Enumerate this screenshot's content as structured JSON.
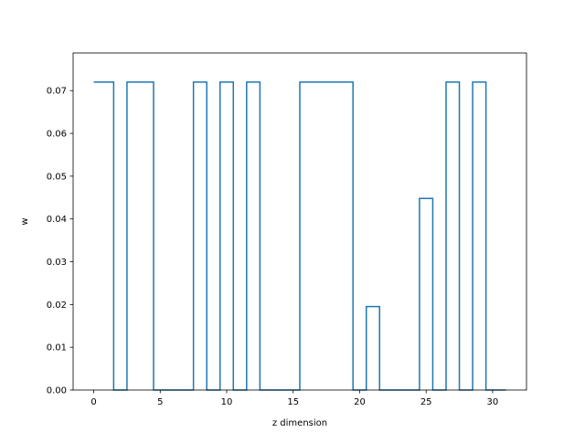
{
  "chart_data": {
    "type": "line",
    "drawstyle": "steps-mid",
    "title": "",
    "xlabel": "z dimension",
    "ylabel": "w",
    "xlim": [
      -1.55,
      32.55
    ],
    "ylim": [
      0.0,
      0.0788
    ],
    "xticks": [
      0,
      5,
      10,
      15,
      20,
      25,
      30
    ],
    "yticks": [
      0.0,
      0.01,
      0.02,
      0.03,
      0.04,
      0.05,
      0.06,
      0.07
    ],
    "xtick_labels": [
      "0",
      "5",
      "10",
      "15",
      "20",
      "25",
      "30"
    ],
    "ytick_labels": [
      "0.00",
      "0.01",
      "0.02",
      "0.03",
      "0.04",
      "0.05",
      "0.06",
      "0.07"
    ],
    "grid": false,
    "legend": "none",
    "series": [
      {
        "color": "#1f77b4",
        "x": [
          0,
          1,
          2,
          3,
          4,
          5,
          6,
          7,
          8,
          9,
          10,
          11,
          12,
          13,
          14,
          15,
          16,
          17,
          18,
          19,
          20,
          21,
          22,
          23,
          24,
          25,
          26,
          27,
          28,
          29,
          30,
          31
        ],
        "y": [
          0.072,
          0.072,
          0,
          0.072,
          0.072,
          0,
          0,
          0,
          0.072,
          0,
          0.072,
          0,
          0.072,
          0,
          0,
          0,
          0.072,
          0.072,
          0.072,
          0.072,
          0,
          0.0195,
          0,
          0,
          0,
          0.0448,
          0,
          0.072,
          0,
          0.072,
          0,
          0
        ]
      }
    ]
  }
}
